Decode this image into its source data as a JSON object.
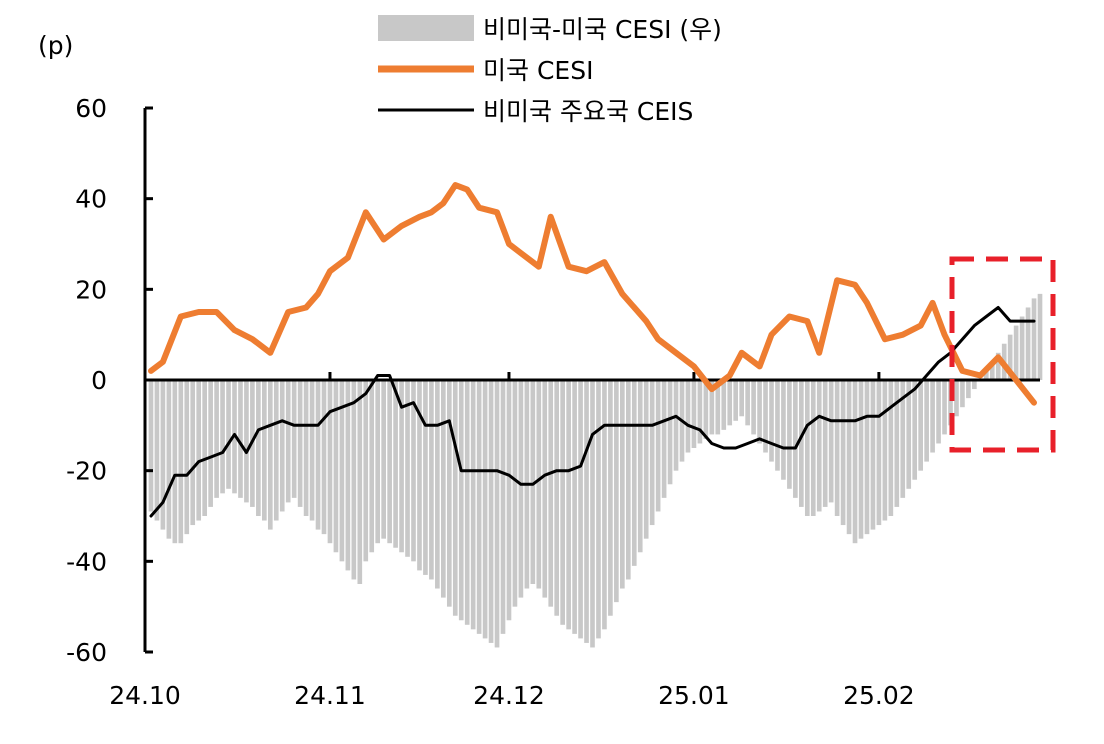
{
  "chart_data": {
    "type": "line",
    "unit_label": "(p)",
    "ylim": [
      -60,
      60
    ],
    "yticks": [
      "60",
      "40",
      "20",
      "0",
      "-20",
      "-40",
      "-60"
    ],
    "xticks": [
      "24.10",
      "24.11",
      "24.12",
      "25.01",
      "25.02"
    ],
    "x_range": [
      "2024-10-01",
      "2025-02-28"
    ],
    "legend": {
      "bars": "비미국-미국 CESI (우)",
      "orange": "미국 CESI",
      "black": "비미국 주요국 CEIS"
    },
    "colors": {
      "bars": "#c8c8c8",
      "orange": "#ee7d31",
      "black": "#000000",
      "highlight": "#e8202a"
    },
    "series": [
      {
        "key": "bars",
        "type": "bar",
        "x": [
          1,
          2,
          3,
          4,
          5,
          6,
          7,
          8,
          9,
          10,
          11,
          12,
          13,
          14,
          15,
          16,
          17,
          18,
          19,
          20,
          21,
          22,
          23,
          24,
          25,
          26,
          27,
          28,
          29,
          30,
          31,
          32,
          33,
          34,
          35,
          36,
          37,
          38,
          39,
          40,
          41,
          42,
          43,
          44,
          45,
          46,
          47,
          48,
          49,
          50,
          51,
          52,
          53,
          54,
          55,
          56,
          57,
          58,
          59,
          60,
          61,
          62,
          63,
          64,
          65,
          66,
          67,
          68,
          69,
          70,
          71,
          72,
          73,
          74,
          75,
          76,
          77,
          78,
          79,
          80,
          81,
          82,
          83,
          84,
          85,
          86,
          87,
          88,
          89,
          90,
          91,
          92,
          93,
          94,
          95,
          96,
          97,
          98,
          99,
          100,
          101,
          102,
          103,
          104,
          105,
          106,
          107,
          108,
          109,
          110,
          111,
          112,
          113,
          114,
          115,
          116,
          117,
          118,
          119,
          120,
          121,
          122,
          123,
          124,
          125,
          126,
          127,
          128,
          129,
          130,
          131,
          132,
          133,
          134,
          135,
          136,
          137,
          138,
          139,
          140,
          141,
          142,
          143,
          144,
          145,
          146,
          147,
          148,
          149,
          150
        ],
        "values": [
          -29,
          -31,
          -33,
          -35,
          -36,
          -36,
          -34,
          -32,
          -31,
          -30,
          -28,
          -26,
          -25,
          -24,
          -25,
          -26,
          -27,
          -28,
          -30,
          -31,
          -33,
          -31,
          -29,
          -27,
          -26,
          -28,
          -30,
          -31,
          -33,
          -34,
          -36,
          -38,
          -40,
          -42,
          -44,
          -45,
          -40,
          -38,
          -36,
          -35,
          -36,
          -37,
          -38,
          -39,
          -40,
          -42,
          -43,
          -44,
          -46,
          -48,
          -50,
          -52,
          -53,
          -54,
          -55,
          -56,
          -57,
          -58,
          -59,
          -56,
          -53,
          -50,
          -48,
          -46,
          -45,
          -46,
          -48,
          -50,
          -52,
          -54,
          -55,
          -56,
          -57,
          -58,
          -59,
          -57,
          -55,
          -52,
          -49,
          -46,
          -44,
          -41,
          -38,
          -35,
          -32,
          -29,
          -26,
          -23,
          -20,
          -18,
          -16,
          -15,
          -14,
          -13,
          -12,
          -12,
          -11,
          -10,
          -9,
          -8,
          -10,
          -12,
          -14,
          -16,
          -18,
          -20,
          -22,
          -24,
          -26,
          -28,
          -30,
          -30,
          -29,
          -28,
          -27,
          -30,
          -32,
          -34,
          -36,
          -35,
          -34,
          -33,
          -32,
          -31,
          -30,
          -28,
          -26,
          -24,
          -22,
          -20,
          -18,
          -16,
          -14,
          -12,
          -10,
          -8,
          -6,
          -4,
          -2,
          0,
          2,
          4,
          6,
          8,
          10,
          12,
          14,
          16,
          18,
          19
        ]
      },
      {
        "key": "orange",
        "type": "line",
        "name": "미국 CESI",
        "x": [
          1,
          3,
          6,
          9,
          12,
          15,
          18,
          21,
          24,
          27,
          29,
          31,
          34,
          37,
          40,
          43,
          46,
          48,
          50,
          52,
          54,
          56,
          59,
          61,
          63,
          66,
          68,
          71,
          74,
          77,
          80,
          84,
          86,
          89,
          92,
          95,
          98,
          100,
          103,
          105,
          108,
          111,
          113,
          116,
          119,
          121,
          124,
          127,
          130,
          132,
          134,
          137,
          140,
          143,
          146,
          149
        ],
        "values": [
          2,
          4,
          14,
          15,
          15,
          11,
          9,
          6,
          15,
          16,
          19,
          24,
          27,
          37,
          31,
          34,
          36,
          37,
          39,
          43,
          42,
          38,
          37,
          30,
          28,
          25,
          36,
          25,
          24,
          26,
          19,
          13,
          9,
          6,
          3,
          -2,
          1,
          6,
          3,
          10,
          14,
          13,
          6,
          22,
          21,
          17,
          9,
          10,
          12,
          17,
          10,
          2,
          1,
          5,
          0,
          -5
        ]
      },
      {
        "key": "black",
        "type": "line",
        "name": "비미국 주요국 CEIS",
        "x": [
          1,
          3,
          5,
          7,
          9,
          11,
          13,
          15,
          17,
          19,
          21,
          23,
          25,
          27,
          29,
          31,
          33,
          35,
          37,
          39,
          41,
          43,
          45,
          47,
          49,
          51,
          53,
          55,
          57,
          59,
          61,
          63,
          65,
          67,
          69,
          71,
          73,
          75,
          77,
          79,
          81,
          83,
          85,
          87,
          89,
          91,
          93,
          95,
          97,
          99,
          101,
          103,
          105,
          107,
          109,
          111,
          113,
          115,
          117,
          119,
          121,
          123,
          125,
          127,
          129,
          131,
          133,
          135,
          137,
          139,
          141,
          143,
          145,
          147,
          149
        ],
        "values": [
          -30,
          -27,
          -21,
          -21,
          -18,
          -17,
          -16,
          -12,
          -16,
          -11,
          -10,
          -9,
          -10,
          -10,
          -10,
          -7,
          -6,
          -5,
          -3,
          1,
          1,
          -6,
          -5,
          -10,
          -10,
          -9,
          -20,
          -20,
          -20,
          -20,
          -21,
          -23,
          -23,
          -21,
          -20,
          -20,
          -19,
          -12,
          -10,
          -10,
          -10,
          -10,
          -10,
          -9,
          -8,
          -10,
          -11,
          -14,
          -15,
          -15,
          -14,
          -13,
          -14,
          -15,
          -15,
          -10,
          -8,
          -9,
          -9,
          -9,
          -8,
          -8,
          -6,
          -4,
          -2,
          1,
          4,
          6,
          9,
          12,
          14,
          16,
          13,
          13,
          13
        ]
      }
    ]
  }
}
